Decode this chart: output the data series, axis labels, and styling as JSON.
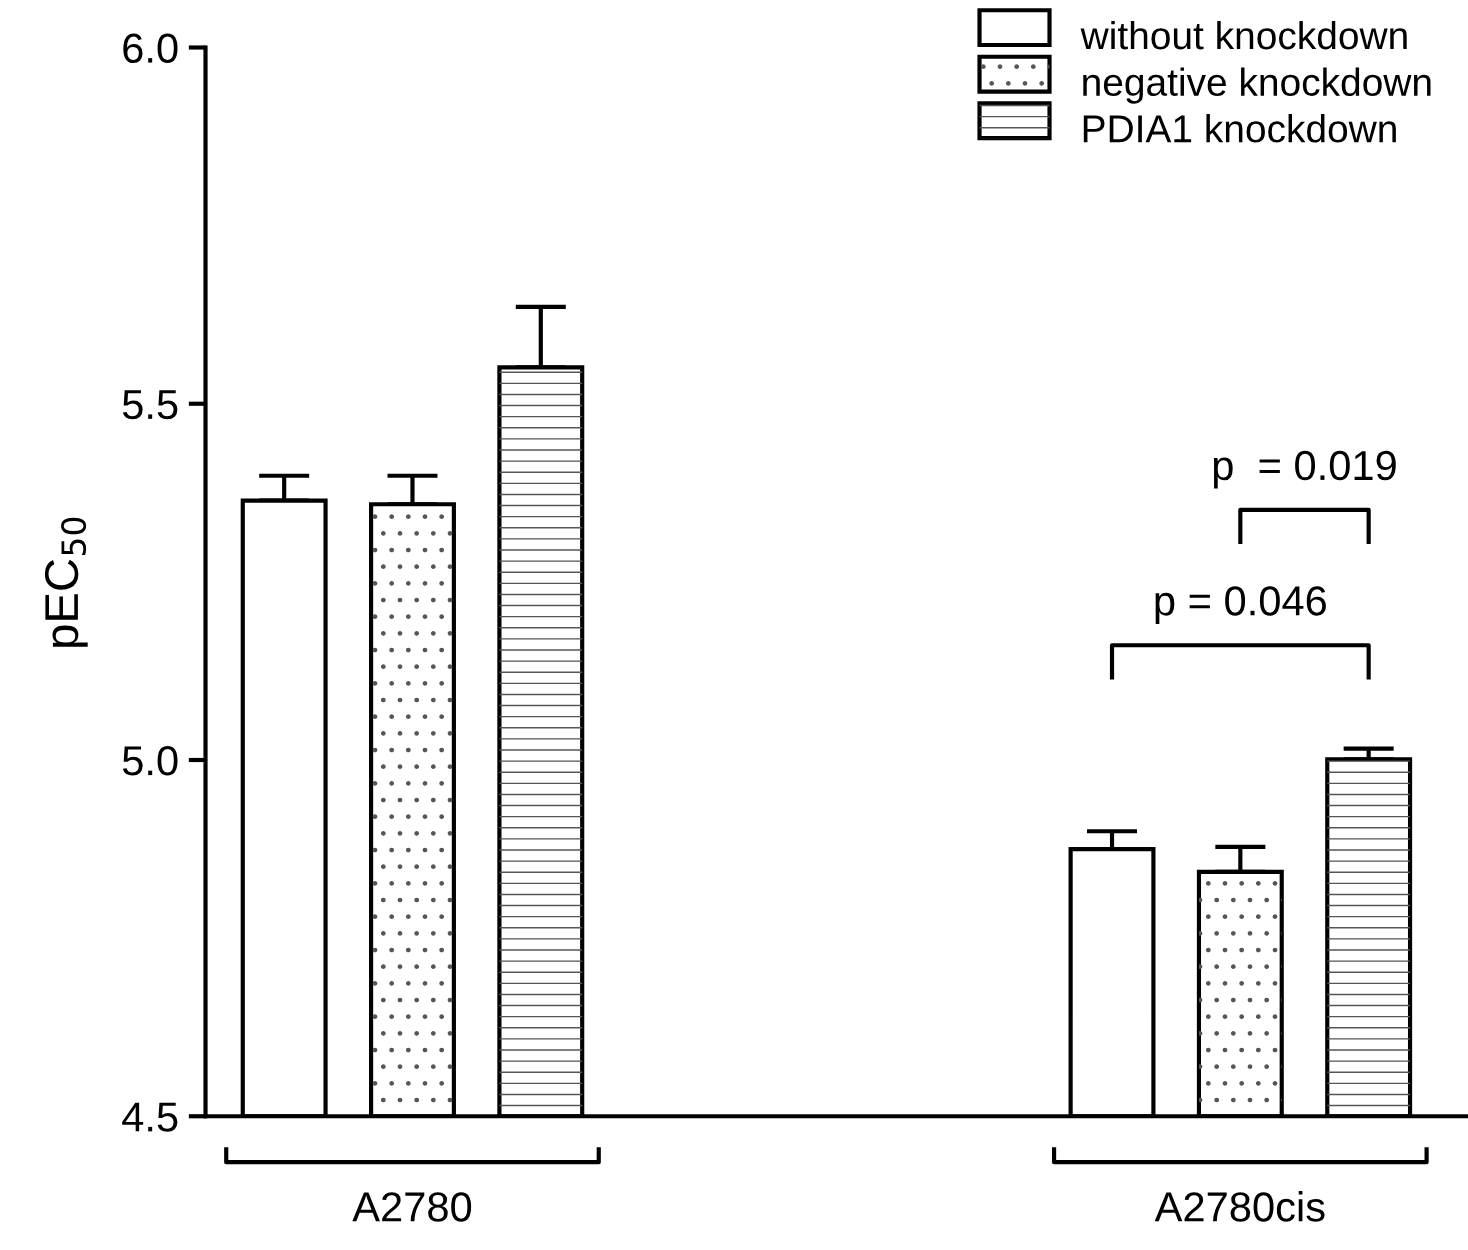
{
  "chart_data": {
    "type": "bar",
    "ylabel": "pEC$_{50}$",
    "categories": [
      "A2780",
      "A2780cis"
    ],
    "series": [
      {
        "name": "without knockdown",
        "color": "#ffffff",
        "values": [
          5.364,
          4.875
        ],
        "errors": [
          0.035,
          0.025
        ]
      },
      {
        "name": "negative knockdown",
        "color": "#ffffff",
        "values": [
          5.359,
          4.843
        ],
        "errors": [
          0.04,
          0.035
        ]
      },
      {
        "name": "PDIA1 knockdown",
        "color": "#ffffff",
        "values": [
          5.551,
          5.001
        ],
        "errors": [
          0.085,
          0.015
        ]
      }
    ],
    "ylim": [
      4.5,
      6.0
    ],
    "yticks": [
      {
        "value": 4.5,
        "label": "4.5"
      },
      {
        "value": 5.0,
        "label": "5.0"
      },
      {
        "value": 5.5,
        "label": "5.5"
      },
      {
        "value": 6.0,
        "label": "6.0"
      }
    ],
    "grid": false,
    "legend": "top right",
    "annotations": [
      "p = 0.046",
      "p  = 0.019"
    ]
  }
}
